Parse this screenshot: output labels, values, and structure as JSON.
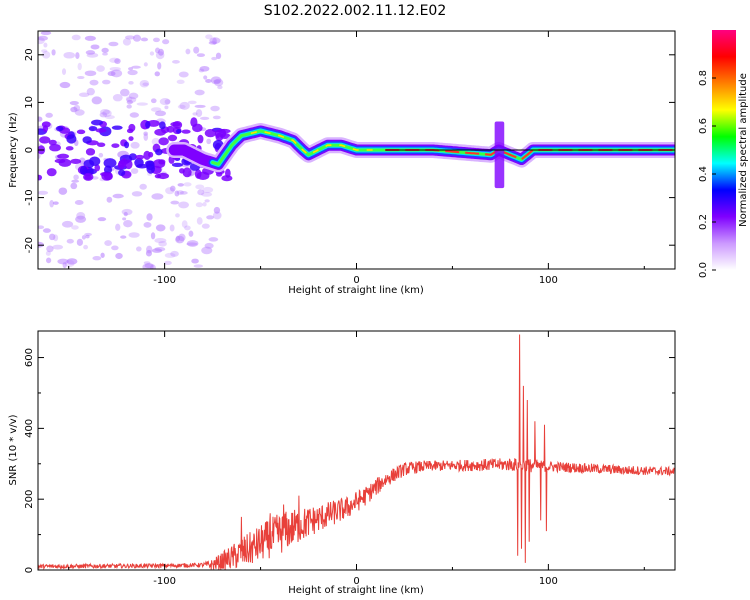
{
  "title": "S102.2022.002.11.12.E02",
  "chart_data": [
    {
      "type": "heatmap",
      "title": "",
      "xlabel": "Height of straight line (km)",
      "ylabel": "Frequency (Hz)",
      "xlim": [
        -166,
        166
      ],
      "ylim": [
        -25,
        25
      ],
      "xticks": [
        -100,
        0,
        100
      ],
      "yticks": [
        -20,
        -10,
        0,
        10,
        20
      ],
      "ridge": [
        {
          "x": -166,
          "y": 0
        },
        {
          "x": -150,
          "y": 0
        },
        {
          "x": -130,
          "y": 1
        },
        {
          "x": -110,
          "y": 0
        },
        {
          "x": -90,
          "y": 0
        },
        {
          "x": -80,
          "y": -2
        },
        {
          "x": -72,
          "y": -3
        },
        {
          "x": -65,
          "y": 1
        },
        {
          "x": -60,
          "y": 3
        },
        {
          "x": -50,
          "y": 4
        },
        {
          "x": -40,
          "y": 3
        },
        {
          "x": -33,
          "y": 2
        },
        {
          "x": -28,
          "y": 0
        },
        {
          "x": -25,
          "y": -1
        },
        {
          "x": -20,
          "y": 0
        },
        {
          "x": -15,
          "y": 1
        },
        {
          "x": -8,
          "y": 1
        },
        {
          "x": 0,
          "y": 0
        },
        {
          "x": 15,
          "y": 0
        },
        {
          "x": 40,
          "y": 0
        },
        {
          "x": 70,
          "y": -1
        },
        {
          "x": 74,
          "y": 0
        },
        {
          "x": 80,
          "y": -1
        },
        {
          "x": 86,
          "y": -2
        },
        {
          "x": 92,
          "y": 0
        },
        {
          "x": 100,
          "y": 0
        },
        {
          "x": 110,
          "y": 0
        },
        {
          "x": 140,
          "y": 0
        },
        {
          "x": 166,
          "y": 0
        }
      ],
      "colorbar": {
        "label": "Normalized spectral amplitude",
        "range": [
          0.0,
          1.0
        ],
        "ticks": [
          0.0,
          0.2,
          0.4,
          0.6,
          0.8
        ],
        "colors": [
          "#ffffff",
          "#cc99ff",
          "#7f00ff",
          "#0000ff",
          "#00ffff",
          "#00ff00",
          "#ffff00",
          "#ff7f00",
          "#ff0000",
          "#ff0080"
        ]
      }
    },
    {
      "type": "line",
      "title": "",
      "xlabel": "Height of straight line (km)",
      "ylabel": "SNR (10 * v/v)",
      "xlim": [
        -166,
        166
      ],
      "ylim": [
        0,
        675
      ],
      "xticks": [
        -100,
        0,
        100
      ],
      "yticks": [
        0,
        200,
        400,
        600
      ],
      "color": "#e8403a",
      "envelope": [
        {
          "x": -166,
          "y": 10
        },
        {
          "x": -100,
          "y": 12
        },
        {
          "x": -75,
          "y": 15
        },
        {
          "x": -65,
          "y": 35
        },
        {
          "x": -55,
          "y": 60
        },
        {
          "x": -45,
          "y": 90
        },
        {
          "x": -35,
          "y": 115
        },
        {
          "x": -25,
          "y": 135
        },
        {
          "x": -15,
          "y": 155
        },
        {
          "x": -5,
          "y": 175
        },
        {
          "x": 5,
          "y": 210
        },
        {
          "x": 15,
          "y": 255
        },
        {
          "x": 25,
          "y": 285
        },
        {
          "x": 35,
          "y": 293
        },
        {
          "x": 50,
          "y": 295
        },
        {
          "x": 80,
          "y": 298
        },
        {
          "x": 110,
          "y": 290
        },
        {
          "x": 140,
          "y": 282
        },
        {
          "x": 166,
          "y": 278
        }
      ],
      "noise": [
        {
          "x": -166,
          "y": 6
        },
        {
          "x": -80,
          "y": 6
        },
        {
          "x": -60,
          "y": 45
        },
        {
          "x": -40,
          "y": 60
        },
        {
          "x": -20,
          "y": 40
        },
        {
          "x": 0,
          "y": 30
        },
        {
          "x": 20,
          "y": 20
        },
        {
          "x": 40,
          "y": 15
        },
        {
          "x": 75,
          "y": 18
        },
        {
          "x": 90,
          "y": 20
        },
        {
          "x": 100,
          "y": 15
        },
        {
          "x": 166,
          "y": 12
        }
      ],
      "spikes": [
        {
          "x": -60,
          "y": 150
        },
        {
          "x": -45,
          "y": 160
        },
        {
          "x": -30,
          "y": 210
        },
        {
          "x": -38,
          "y": 185
        },
        {
          "x": 84,
          "y": 40
        },
        {
          "x": 85,
          "y": 665
        },
        {
          "x": 86,
          "y": 60
        },
        {
          "x": 87,
          "y": 520
        },
        {
          "x": 88,
          "y": 20
        },
        {
          "x": 89,
          "y": 480
        },
        {
          "x": 90,
          "y": 80
        },
        {
          "x": 93,
          "y": 420
        },
        {
          "x": 96,
          "y": 140
        },
        {
          "x": 98,
          "y": 410
        },
        {
          "x": 99,
          "y": 110
        }
      ]
    }
  ]
}
